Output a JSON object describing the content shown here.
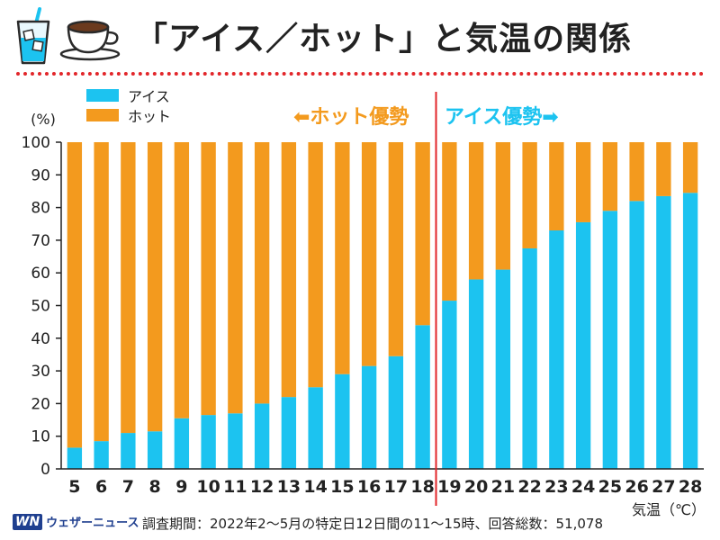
{
  "header": {
    "title": "「アイス／ホット」と気温の関係"
  },
  "icons": {
    "left": "iced-drink-icon",
    "right": "hot-coffee-cup-icon"
  },
  "annotations": {
    "hot_dominant": "⬅ホット優勢",
    "ice_dominant": "アイス優勢➡"
  },
  "footer": {
    "logo_mark": "WN",
    "logo_text": "ウェザーニュース",
    "note": "調査期間：2022年2～5月の特定日12日間の11～15時、回答総数：51,078"
  },
  "colors": {
    "ice": "#1cc3f0",
    "hot": "#f39a1e",
    "divider": "#e2262a",
    "dots": "#e2262a"
  },
  "chart_data": {
    "type": "bar",
    "stacked": true,
    "categories": [
      "5",
      "6",
      "7",
      "8",
      "9",
      "10",
      "11",
      "12",
      "13",
      "14",
      "15",
      "16",
      "17",
      "18",
      "19",
      "20",
      "21",
      "22",
      "23",
      "24",
      "25",
      "26",
      "27",
      "28"
    ],
    "series": [
      {
        "name": "アイス",
        "color": "#1cc3f0",
        "values": [
          6.5,
          8.5,
          11,
          11.5,
          15.5,
          16.5,
          17,
          20,
          22,
          25,
          29,
          31.5,
          34.5,
          44,
          51.5,
          58,
          61,
          67.5,
          73,
          75.5,
          79,
          82,
          83.5,
          84.5
        ]
      },
      {
        "name": "ホット",
        "color": "#f39a1e",
        "values": [
          93.5,
          91.5,
          89,
          88.5,
          84.5,
          83.5,
          83,
          80,
          78,
          75,
          71,
          68.5,
          65.5,
          56,
          48.5,
          42,
          39,
          32.5,
          27,
          24.5,
          21,
          18,
          16.5,
          15.5
        ]
      }
    ],
    "ylabel": "(%)",
    "xlabel": "気温（℃）",
    "ylim": [
      0,
      100
    ],
    "yticks": [
      0,
      10,
      20,
      30,
      40,
      50,
      60,
      70,
      80,
      90,
      100
    ],
    "divider_after_category": "18",
    "grid": false,
    "legend_position": "top-left"
  }
}
